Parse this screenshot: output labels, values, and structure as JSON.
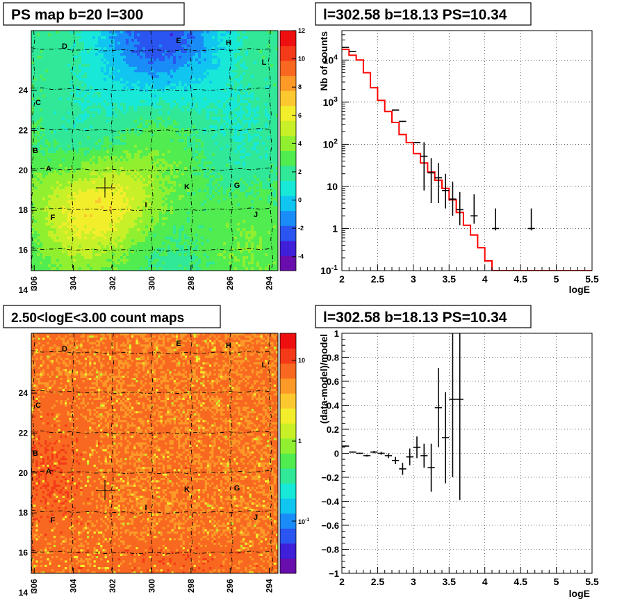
{
  "panels": {
    "map_top": {
      "title": "PS map b=20 l=300",
      "x_ticks": [
        "306",
        "304",
        "302",
        "300",
        "298",
        "296",
        "294"
      ],
      "y_ticks": [
        "14",
        "16",
        "18",
        "20",
        "22",
        "24"
      ],
      "colorbar_ticks": [
        "-4",
        "-2",
        "0",
        "2",
        "4",
        "6",
        "8",
        "10",
        "12"
      ],
      "colorbar_range": [
        -5,
        12
      ],
      "sources": [
        "D",
        "E",
        "H",
        "L",
        "C",
        "B",
        "A",
        "K",
        "G",
        "I",
        "F",
        "J"
      ]
    },
    "map_bottom": {
      "title": "2.50<logE<3.00 count maps",
      "x_ticks": [
        "306",
        "304",
        "302",
        "300",
        "298",
        "296",
        "294"
      ],
      "y_ticks": [
        "14",
        "16",
        "18",
        "20",
        "22",
        "24"
      ],
      "colorbar_ticks": [
        "10",
        "1",
        "10^-1"
      ],
      "colorbar_scale": "log",
      "sources": [
        "D",
        "E",
        "H",
        "L",
        "C",
        "B",
        "A",
        "K",
        "G",
        "I",
        "F",
        "J"
      ]
    }
  },
  "chart_data": [
    {
      "type": "line",
      "title": "l=302.58 b=18.13 PS=10.34",
      "xlabel": "logE",
      "ylabel": "Nb of counts",
      "x_ticks": [
        "2",
        "2.5",
        "3",
        "3.5",
        "4",
        "4.5",
        "5",
        "5.5"
      ],
      "y_ticks": [
        "10^-1",
        "1",
        "10",
        "10^2",
        "10^3",
        "10^4"
      ],
      "xlim": [
        2,
        5.5
      ],
      "ylim": [
        0.1,
        50000
      ],
      "y_scale": "log",
      "grid": true,
      "series": [
        {
          "kind": "data",
          "color": "#000000",
          "points": [
            {
              "x": 2.05,
              "y": 20000,
              "err": [
                0,
                0
              ]
            },
            {
              "x": 2.15,
              "y": 16000,
              "err": [
                0,
                0
              ]
            },
            {
              "x": 2.75,
              "y": 650,
              "err": [
                0,
                0
              ]
            },
            {
              "x": 2.85,
              "y": 350,
              "err": [
                0,
                0
              ]
            },
            {
              "x": 3.05,
              "y": 110,
              "err": [
                0,
                0
              ]
            },
            {
              "x": 3.15,
              "y": 52,
              "err": [
                44,
                60
              ]
            },
            {
              "x": 3.25,
              "y": 21,
              "err": [
                17,
                26
              ]
            },
            {
              "x": 3.35,
              "y": 16,
              "err": [
                12,
                20
              ]
            },
            {
              "x": 3.45,
              "y": 8,
              "err": [
                5,
                12
              ]
            },
            {
              "x": 3.55,
              "y": 5,
              "err": [
                3,
                8
              ]
            },
            {
              "x": 3.65,
              "y": 2.8,
              "err": [
                1.6,
                4.6
              ]
            },
            {
              "x": 3.85,
              "y": 2,
              "err": [
                0.7,
                4.5
              ]
            },
            {
              "x": 4.15,
              "y": 1,
              "err": [
                0.1,
                2
              ]
            },
            {
              "x": 4.65,
              "y": 1,
              "err": [
                0.1,
                2
              ]
            }
          ]
        },
        {
          "kind": "model",
          "color": "#ff0000",
          "edges": [
            2.0,
            2.1,
            2.2,
            2.3,
            2.4,
            2.5,
            2.6,
            2.7,
            2.8,
            2.9,
            3.0,
            3.1,
            3.2,
            3.3,
            3.4,
            3.5,
            3.6,
            3.7,
            3.8,
            3.9,
            4.0,
            4.1,
            4.2,
            4.3,
            4.4,
            4.5,
            4.6,
            4.7,
            4.8,
            4.9,
            5.0,
            5.1,
            5.2,
            5.3,
            5.4,
            5.5
          ],
          "values": [
            18000,
            13000,
            10000,
            5000,
            2200,
            1100,
            600,
            330,
            170,
            110,
            60,
            36,
            22,
            14,
            9,
            4.8,
            2.4,
            1.2,
            0.7,
            0.35,
            0.17,
            0.1,
            0.1,
            0.1,
            0.1,
            0.1,
            0.1,
            0.1,
            0.1,
            0.1,
            0.1,
            0.1,
            0.1,
            0.1,
            0.1
          ]
        }
      ]
    },
    {
      "type": "scatter",
      "title": "l=302.58 b=18.13 PS=10.34",
      "xlabel": "logE",
      "ylabel": "(data-model)/model",
      "x_ticks": [
        "2",
        "2.5",
        "3",
        "3.5",
        "4",
        "4.5",
        "5",
        "5.5"
      ],
      "y_ticks": [
        "−1",
        "−0.8",
        "−0.6",
        "−0.4",
        "−0.2",
        "0",
        "0.2",
        "0.4",
        "0.6",
        "0.8",
        "1"
      ],
      "xlim": [
        2,
        5.5
      ],
      "ylim": [
        -1,
        1
      ],
      "grid": true,
      "points": [
        {
          "x": 2.05,
          "y": 0.06,
          "err": 0.005
        },
        {
          "x": 2.15,
          "y": 0.01,
          "err": 0.005
        },
        {
          "x": 2.25,
          "y": 0.0,
          "err": 0.005
        },
        {
          "x": 2.35,
          "y": -0.02,
          "err": 0.008
        },
        {
          "x": 2.45,
          "y": 0.01,
          "err": 0.01
        },
        {
          "x": 2.55,
          "y": 0.0,
          "err": 0.012
        },
        {
          "x": 2.65,
          "y": -0.02,
          "err": 0.02
        },
        {
          "x": 2.75,
          "y": -0.06,
          "err": 0.03
        },
        {
          "x": 2.85,
          "y": -0.13,
          "err": 0.05
        },
        {
          "x": 2.95,
          "y": -0.03,
          "err": 0.07
        },
        {
          "x": 3.05,
          "y": 0.05,
          "err": 0.09
        },
        {
          "x": 3.15,
          "y": -0.02,
          "err": 0.1
        },
        {
          "x": 3.25,
          "y": -0.12,
          "err": 0.2
        },
        {
          "x": 3.35,
          "y": 0.38,
          "err": 0.33
        },
        {
          "x": 3.45,
          "y": 0.13,
          "err": 0.38
        },
        {
          "x": 3.55,
          "y": 0.45,
          "err": 0.65
        },
        {
          "x": 3.65,
          "y": 0.45,
          "err": 0.84
        }
      ]
    }
  ]
}
